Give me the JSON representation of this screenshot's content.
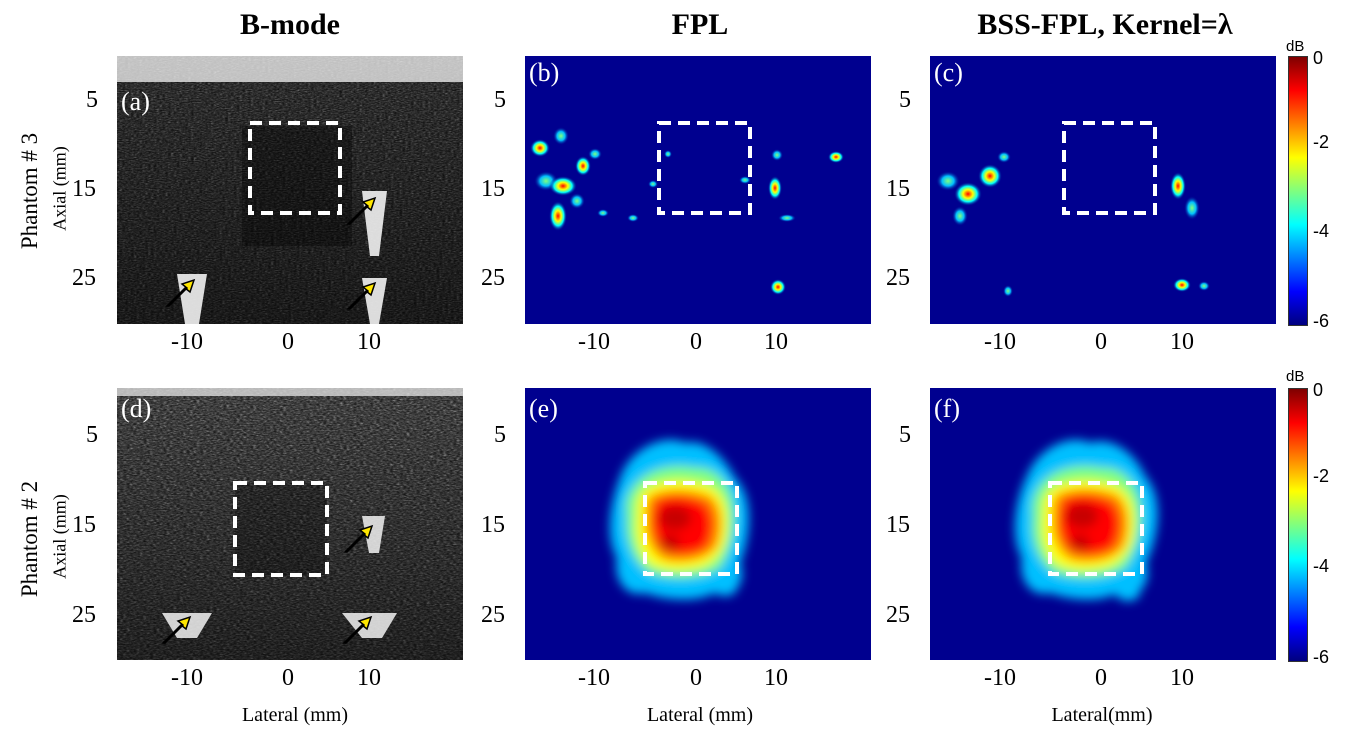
{
  "column_titles": [
    "B-mode",
    "FPL",
    "BSS-FPL, Kernel=λ"
  ],
  "row_titles": [
    "Phantom # 3",
    "Phantom # 2"
  ],
  "y_axis_label": "Axial (mm)",
  "x_axis_labels": [
    "Lateral (mm)",
    "Lateral (mm)",
    "Lateral(mm)"
  ],
  "panel_labels": [
    "(a)",
    "(b)",
    "(c)",
    "(d)",
    "(e)",
    "(f)"
  ],
  "y_ticks": [
    "5",
    "15",
    "25"
  ],
  "x_ticks": [
    "-10",
    "0",
    "10"
  ],
  "colorbar": {
    "unit": "dB",
    "ticks": [
      "0",
      "-2",
      "-4",
      "-6"
    ],
    "range": [
      -6,
      0
    ]
  },
  "colors": {
    "jet": [
      "#00007f",
      "#0000ff",
      "#007fff",
      "#00ffff",
      "#7fff7f",
      "#ffff00",
      "#ff7f00",
      "#ff0000",
      "#7f0000"
    ],
    "background_map": "#00008f",
    "arrow": "#ffe600",
    "roi": "#ffffff"
  }
}
